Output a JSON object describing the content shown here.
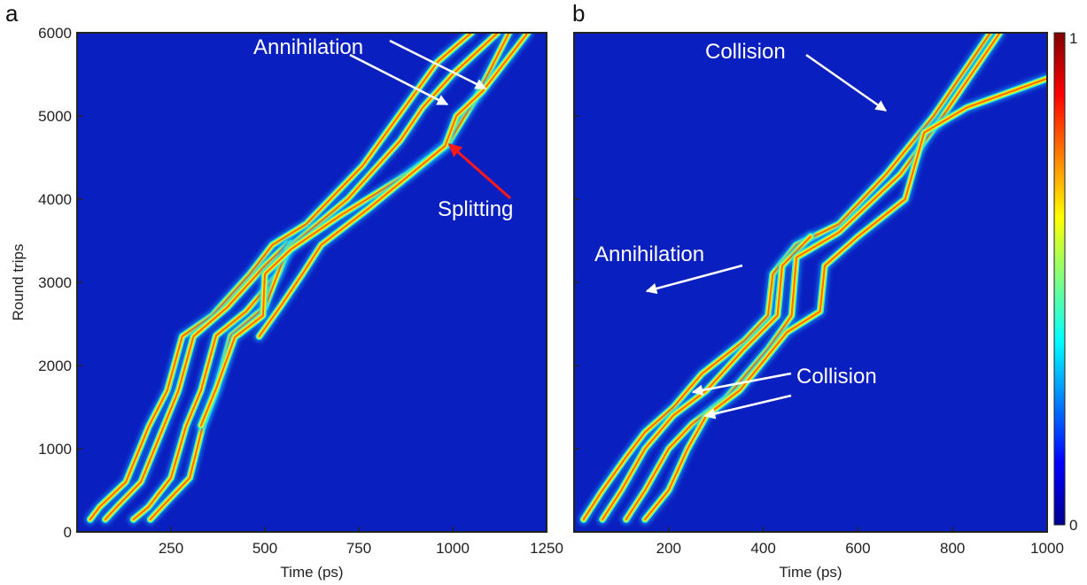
{
  "chart_data": [
    {
      "panel": "a",
      "type": "heatmap",
      "xlabel": "Time (ps)",
      "ylabel": "Round trips",
      "xlim": [
        0,
        1250
      ],
      "ylim": [
        0,
        6000
      ],
      "xticks": [
        250,
        500,
        750,
        1000,
        1250
      ],
      "yticks": [
        0,
        1000,
        2000,
        3000,
        4000,
        5000,
        6000
      ],
      "background_color": "#0a1fbf",
      "traces": [
        {
          "points": [
            [
              35,
              150
            ],
            [
              60,
              300
            ],
            [
              130,
              600
            ],
            [
              190,
              1260
            ],
            [
              240,
              1700
            ],
            [
              280,
              2350
            ],
            [
              360,
              2600
            ],
            [
              460,
              3100
            ],
            [
              520,
              3450
            ],
            [
              610,
              3700
            ],
            [
              760,
              4400
            ],
            [
              960,
              5650
            ],
            [
              1050,
              6000
            ]
          ]
        },
        {
          "points": [
            [
              75,
              150
            ],
            [
              110,
              320
            ],
            [
              170,
              600
            ],
            [
              230,
              1260
            ],
            [
              270,
              1700
            ],
            [
              310,
              2350
            ],
            [
              400,
              2700
            ],
            [
              500,
              3200
            ],
            [
              560,
              3460
            ]
          ]
        },
        {
          "points": [
            [
              150,
              150
            ],
            [
              190,
              300
            ],
            [
              250,
              650
            ],
            [
              290,
              1270
            ],
            [
              330,
              1700
            ],
            [
              370,
              2360
            ],
            [
              450,
              2650
            ],
            [
              535,
              3100
            ],
            [
              570,
              3470
            ]
          ]
        },
        {
          "points": [
            [
              195,
              150
            ],
            [
              230,
              320
            ],
            [
              300,
              650
            ],
            [
              335,
              1280
            ],
            [
              370,
              1700
            ],
            [
              410,
              2360
            ],
            [
              500,
              2700
            ],
            [
              560,
              3400
            ],
            [
              720,
              4000
            ],
            [
              860,
              4700
            ],
            [
              920,
              5100
            ],
            [
              1000,
              5500
            ],
            [
              1120,
              6000
            ]
          ]
        },
        {
          "points": [
            [
              330,
              1280
            ],
            [
              370,
              1720
            ],
            [
              420,
              2340
            ],
            [
              495,
              2600
            ],
            [
              500,
              3100
            ],
            [
              570,
              3400
            ],
            [
              700,
              3800
            ],
            [
              880,
              4300
            ],
            [
              985,
              4650
            ],
            [
              1060,
              5200
            ],
            [
              1150,
              6000
            ]
          ]
        },
        {
          "points": [
            [
              485,
              2350
            ],
            [
              540,
              2700
            ],
            [
              600,
              3100
            ],
            [
              650,
              3450
            ],
            [
              780,
              3900
            ],
            [
              980,
              4640
            ],
            [
              1010,
              5000
            ],
            [
              1080,
              5300
            ],
            [
              1200,
              6000
            ]
          ]
        }
      ],
      "annotations": [
        {
          "text": "Annihilation",
          "color": "#ffffff"
        },
        {
          "text": "Splitting",
          "color": "#ff2020"
        }
      ]
    },
    {
      "panel": "b",
      "type": "heatmap",
      "xlabel": "Time (ps)",
      "xlim": [
        0,
        1000
      ],
      "ylim": [
        0,
        6000
      ],
      "xticks": [
        200,
        400,
        600,
        800,
        1000
      ],
      "background_color": "#0a1fbf",
      "colorbar": {
        "min": 0,
        "max": 1,
        "labels": [
          "0",
          "1"
        ]
      },
      "traces": [
        {
          "points": [
            [
              20,
              150
            ],
            [
              60,
              500
            ],
            [
              110,
              900
            ],
            [
              150,
              1200
            ],
            [
              210,
              1500
            ],
            [
              270,
              1900
            ],
            [
              360,
              2300
            ],
            [
              410,
              2600
            ],
            [
              420,
              3100
            ],
            [
              470,
              3450
            ],
            [
              560,
              3700
            ],
            [
              660,
              4300
            ],
            [
              760,
              5000
            ],
            [
              880,
              6000
            ]
          ]
        },
        {
          "points": [
            [
              60,
              150
            ],
            [
              100,
              500
            ],
            [
              150,
              1000
            ],
            [
              210,
              1400
            ],
            [
              280,
              1700
            ],
            [
              360,
              2200
            ],
            [
              430,
              2600
            ],
            [
              440,
              3200
            ],
            [
              500,
              3550
            ]
          ]
        },
        {
          "points": [
            [
              110,
              150
            ],
            [
              150,
              500
            ],
            [
              200,
              1000
            ],
            [
              250,
              1300
            ],
            [
              320,
              1600
            ],
            [
              410,
              2200
            ],
            [
              460,
              2600
            ],
            [
              470,
              3300
            ],
            [
              560,
              3600
            ],
            [
              690,
              4300
            ],
            [
              780,
              5000
            ],
            [
              900,
              6000
            ]
          ]
        },
        {
          "points": [
            [
              150,
              150
            ],
            [
              200,
              500
            ],
            [
              240,
              1000
            ],
            [
              280,
              1400
            ],
            [
              350,
              1700
            ],
            [
              450,
              2400
            ],
            [
              520,
              2650
            ],
            [
              530,
              3200
            ],
            [
              600,
              3550
            ],
            [
              700,
              4000
            ],
            [
              740,
              4800
            ],
            [
              830,
              5100
            ],
            [
              1000,
              5450
            ]
          ]
        }
      ],
      "annotations": [
        {
          "text": "Collision",
          "color": "#ffffff"
        },
        {
          "text": "Annihilation",
          "color": "#ffffff"
        },
        {
          "text": "Collision",
          "color": "#ffffff"
        }
      ]
    }
  ]
}
